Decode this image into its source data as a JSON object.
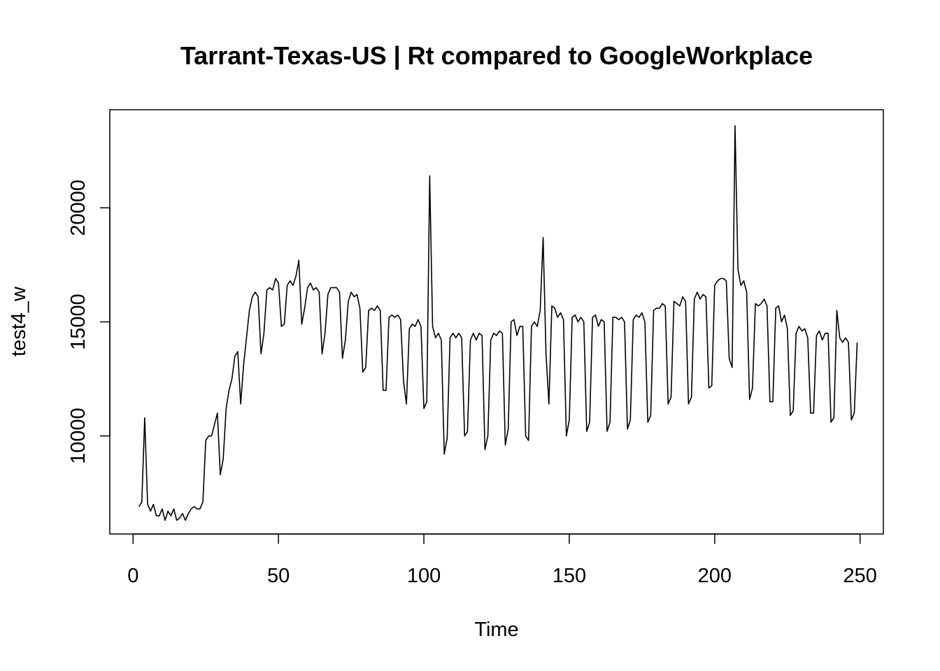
{
  "chart_data": {
    "type": "line",
    "title": "Tarrant-Texas-US | Rt compared to GoogleWorkplace",
    "xlabel": "Time",
    "ylabel": "test4_w",
    "xlim": [
      -8,
      258
    ],
    "ylim": [
      5700,
      24300
    ],
    "x_ticks": [
      0,
      50,
      100,
      150,
      200,
      250
    ],
    "x_tick_labels": [
      "0",
      "50",
      "100",
      "150",
      "200",
      "250"
    ],
    "y_ticks": [
      10000,
      15000,
      20000
    ],
    "y_tick_labels": [
      "10000",
      "15000",
      "20000"
    ],
    "grid": false,
    "legend": "none",
    "line_color": "#000000",
    "series": [
      {
        "x_start": 2,
        "values": [
          6900,
          7100,
          10800,
          7000,
          6700,
          7000,
          6500,
          6500,
          6800,
          6300,
          6700,
          6500,
          6800,
          6300,
          6400,
          6600,
          6300,
          6600,
          6800,
          6900,
          6800,
          6800,
          7100,
          9800,
          10000,
          10000,
          10500,
          11000,
          8300,
          9000,
          11200,
          12000,
          12500,
          13500,
          13700,
          11400,
          13100,
          14300,
          15500,
          16100,
          16300,
          16100,
          13600,
          14500,
          16400,
          16500,
          16400,
          16900,
          16700,
          14800,
          14900,
          16600,
          16800,
          16600,
          17000,
          17700,
          14900,
          15600,
          16500,
          16700,
          16400,
          16500,
          16300,
          13600,
          14500,
          16200,
          16500,
          16500,
          16500,
          16300,
          13400,
          14200,
          15900,
          16300,
          16100,
          16200,
          15600,
          12800,
          13000,
          15500,
          15600,
          15500,
          15700,
          15500,
          12000,
          12000,
          15200,
          15300,
          15200,
          15300,
          15100,
          12400,
          11400,
          14700,
          14900,
          14800,
          15100,
          14800,
          11200,
          11500,
          21400,
          14800,
          14300,
          14500,
          14200,
          9200,
          9900,
          14300,
          14500,
          14300,
          14500,
          14300,
          10000,
          10200,
          14200,
          14500,
          14200,
          14500,
          14400,
          9400,
          10000,
          14200,
          14500,
          14400,
          14600,
          14500,
          9600,
          10300,
          15000,
          15100,
          14400,
          14800,
          14800,
          10000,
          9800,
          14800,
          15000,
          14800,
          15500,
          18700,
          13600,
          11400,
          15700,
          15600,
          15200,
          15400,
          15100,
          10000,
          10700,
          15200,
          15300,
          15000,
          15200,
          15000,
          10200,
          10600,
          15200,
          15300,
          14800,
          15100,
          15000,
          10200,
          10600,
          15200,
          15200,
          15100,
          15200,
          15000,
          10300,
          10700,
          15100,
          15300,
          15200,
          15400,
          15000,
          10600,
          10900,
          15500,
          15600,
          15600,
          15800,
          15700,
          11400,
          11700,
          15900,
          15800,
          15700,
          16100,
          15900,
          11400,
          11700,
          16000,
          16300,
          16000,
          16200,
          16100,
          12100,
          12200,
          16600,
          16800,
          16900,
          16900,
          16800,
          13400,
          13000,
          23600,
          17300,
          16600,
          16800,
          16300,
          11600,
          12100,
          15800,
          15700,
          15800,
          16000,
          15700,
          11500,
          11500,
          15600,
          15700,
          15000,
          15300,
          14700,
          10900,
          11100,
          14500,
          14800,
          14600,
          14700,
          14300,
          11000,
          11000,
          14400,
          14600,
          14200,
          14500,
          14500,
          10600,
          10800,
          15500,
          14300,
          14100,
          14300,
          14100,
          10700,
          11000,
          14100
        ]
      }
    ]
  }
}
